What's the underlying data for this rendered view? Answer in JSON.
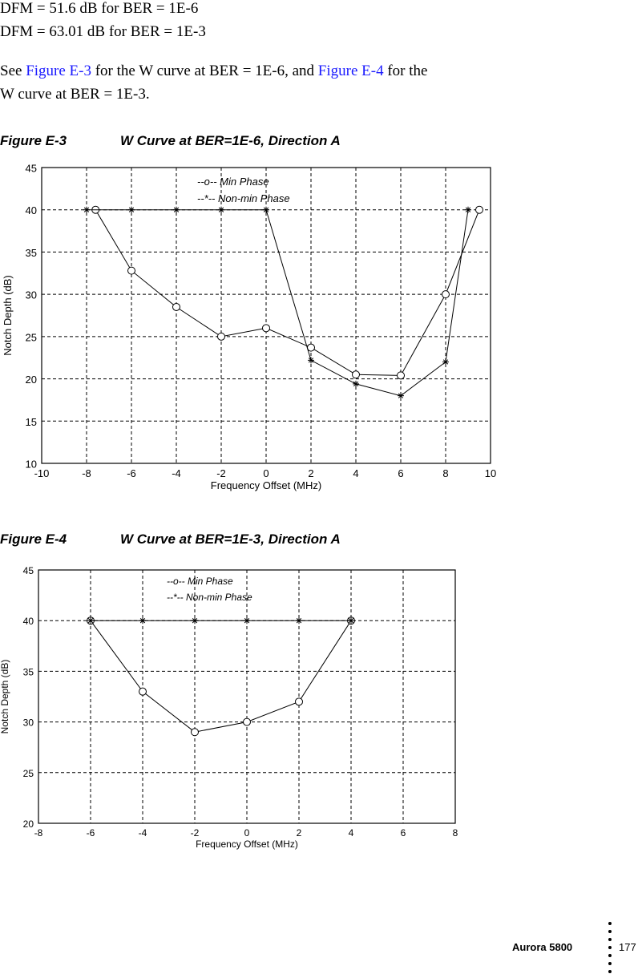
{
  "text": {
    "line1": "DFM = 51.6 dB for BER = 1E-6",
    "line2": "DFM = 63.01 dB for BER = 1E-3",
    "p_see": "See ",
    "p_link1": "Figure E-3",
    "p_mid": " for the W curve at BER = 1E-6, and ",
    "p_link2": "Figure E-4",
    "p_end": " for the",
    "p_line2": "W curve at BER = 1E-3."
  },
  "figures": [
    {
      "label": "Figure E-3",
      "title": "W Curve at BER=1E-6, Direction A"
    },
    {
      "label": "Figure E-4",
      "title": "W Curve at BER=1E-3, Direction A"
    }
  ],
  "footer": {
    "product": "Aurora 5800",
    "page": "177"
  },
  "chart_data": [
    {
      "type": "line",
      "xlabel": "Frequency Offset (MHz)",
      "ylabel": "Notch Depth (dB)",
      "xlim": [
        -10,
        10
      ],
      "ylim": [
        10,
        45
      ],
      "xticks": [
        -10,
        -8,
        -6,
        -4,
        -2,
        0,
        2,
        4,
        6,
        8,
        10
      ],
      "yticks": [
        10,
        15,
        20,
        25,
        30,
        35,
        40,
        45
      ],
      "grid": true,
      "legend": [
        "--o-- Min Phase",
        "--*-- Non-min Phase"
      ],
      "series": [
        {
          "name": "Min Phase",
          "marker": "o",
          "x": [
            -7.6,
            -6,
            -4,
            -2,
            0,
            2,
            4,
            6,
            8,
            9.5
          ],
          "y": [
            40,
            32.8,
            28.5,
            25,
            26,
            23.7,
            20.5,
            20.4,
            30,
            40
          ]
        },
        {
          "name": "Non-min Phase",
          "marker": "*",
          "x": [
            -8,
            -6,
            -4,
            -2,
            0,
            2,
            4,
            6,
            8,
            9
          ],
          "y": [
            40,
            40,
            40,
            40,
            40,
            22.2,
            19.4,
            18,
            22,
            40
          ]
        }
      ]
    },
    {
      "type": "line",
      "xlabel": "Frequency Offset (MHz)",
      "ylabel": "Notch Depth (dB)",
      "xlim": [
        -8,
        8
      ],
      "ylim": [
        20,
        45
      ],
      "xticks": [
        -8,
        -6,
        -4,
        -2,
        0,
        2,
        4,
        6,
        8
      ],
      "yticks": [
        20,
        25,
        30,
        35,
        40,
        45
      ],
      "grid": true,
      "legend": [
        "--o-- Min Phase",
        "--*-- Non-min Phase"
      ],
      "series": [
        {
          "name": "Min Phase",
          "marker": "o",
          "x": [
            -6,
            -4,
            -2,
            0,
            2,
            4
          ],
          "y": [
            40,
            33,
            29,
            30,
            32,
            40
          ]
        },
        {
          "name": "Non-min Phase",
          "marker": "*",
          "x": [
            -6,
            -4,
            -2,
            0,
            2,
            4
          ],
          "y": [
            40,
            40,
            40,
            40,
            40,
            40
          ]
        }
      ]
    }
  ]
}
